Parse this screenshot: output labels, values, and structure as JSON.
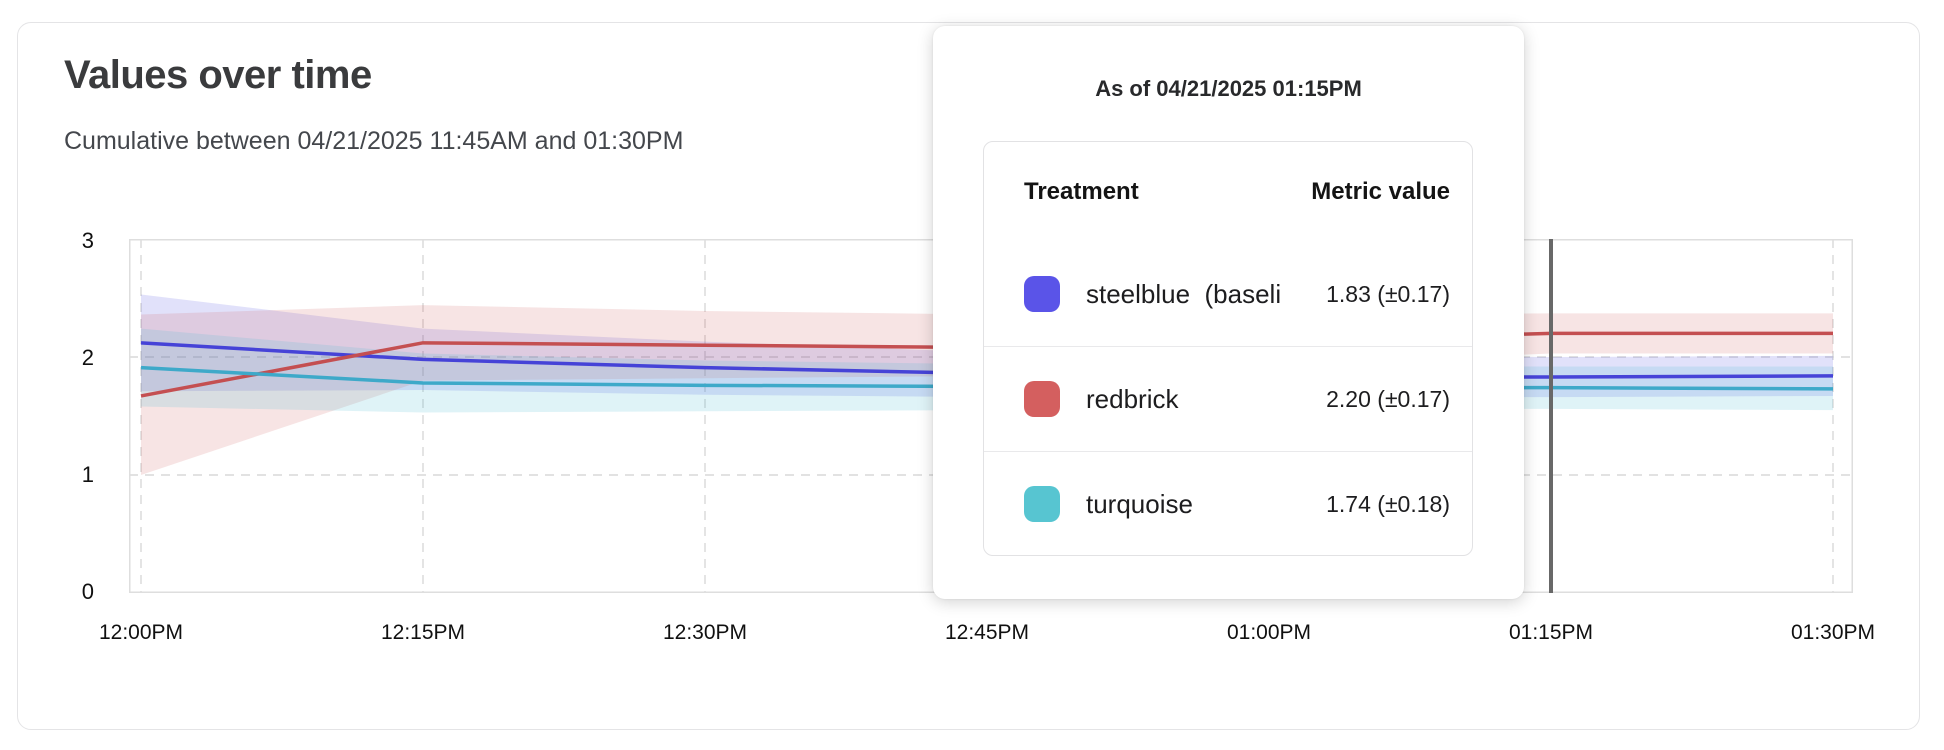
{
  "chart": {
    "title": "Values over time",
    "subtitle": "Cumulative between 04/21/2025 11:45AM and 01:30PM"
  },
  "axes": {
    "y_ticks": [
      "3",
      "2",
      "1",
      "0"
    ],
    "x_ticks": [
      "12:00PM",
      "12:15PM",
      "12:30PM",
      "12:45PM",
      "01:00PM",
      "01:15PM",
      "01:30PM"
    ]
  },
  "tooltip": {
    "title": "As of 04/21/2025 01:15PM",
    "columns": {
      "treatment": "Treatment",
      "metric": "Metric value"
    },
    "rows": [
      {
        "label": "steelblue  (baseli",
        "value": "1.83 (±0.17)",
        "swatch": "#5a54e8"
      },
      {
        "label": "redbrick",
        "value": "2.20 (±0.17)",
        "swatch": "#d45f5f"
      },
      {
        "label": "turquoise",
        "value": "1.74 (±0.18)",
        "swatch": "#57c5d1"
      }
    ]
  },
  "chart_data": {
    "type": "line",
    "title": "Values over time",
    "subtitle": "Cumulative between 04/21/2025 11:45AM and 01:30PM",
    "x": [
      "12:00PM",
      "12:15PM",
      "12:30PM",
      "12:45PM",
      "01:00PM",
      "01:15PM",
      "01:30PM"
    ],
    "ylim": [
      0,
      3
    ],
    "yticks": [
      0,
      1,
      2,
      3
    ],
    "grid": "dashed",
    "cursor": {
      "label": "01:15PM",
      "tick_index": 5,
      "color": "#686868"
    },
    "series": [
      {
        "id": "steelblue-baseline",
        "name": "steelblue (baseline)",
        "color": "#4643d7",
        "band_color": "rgba(80,76,223,0.17)",
        "values": [
          2.12,
          1.98,
          1.91,
          1.86,
          1.84,
          1.83,
          1.84
        ],
        "upper": [
          2.53,
          2.24,
          2.13,
          2.04,
          2.01,
          2.0,
          2.01
        ],
        "lower": [
          1.71,
          1.72,
          1.68,
          1.66,
          1.66,
          1.66,
          1.67
        ],
        "value_at_cursor": "1.83 (±0.17)"
      },
      {
        "id": "redbrick",
        "name": "redbrick",
        "color": "#c44f51",
        "band_color": "rgba(205,92,92,0.17)",
        "values": [
          1.67,
          2.12,
          2.1,
          2.08,
          2.14,
          2.2,
          2.2
        ],
        "upper": [
          2.36,
          2.44,
          2.39,
          2.36,
          2.36,
          2.37,
          2.37
        ],
        "lower": [
          1.0,
          1.8,
          1.82,
          1.84,
          1.93,
          2.03,
          2.03
        ],
        "value_at_cursor": "2.20 (±0.17)"
      },
      {
        "id": "turquoise",
        "name": "turquoise",
        "color": "#3ea9c9",
        "band_color": "rgba(80,190,210,0.18)",
        "values": [
          1.91,
          1.78,
          1.76,
          1.75,
          1.74,
          1.74,
          1.73
        ],
        "upper": [
          2.24,
          2.03,
          1.97,
          1.94,
          1.92,
          1.92,
          1.92
        ],
        "lower": [
          1.58,
          1.53,
          1.54,
          1.55,
          1.56,
          1.56,
          1.55
        ],
        "value_at_cursor": "1.74 (±0.18)"
      }
    ]
  }
}
